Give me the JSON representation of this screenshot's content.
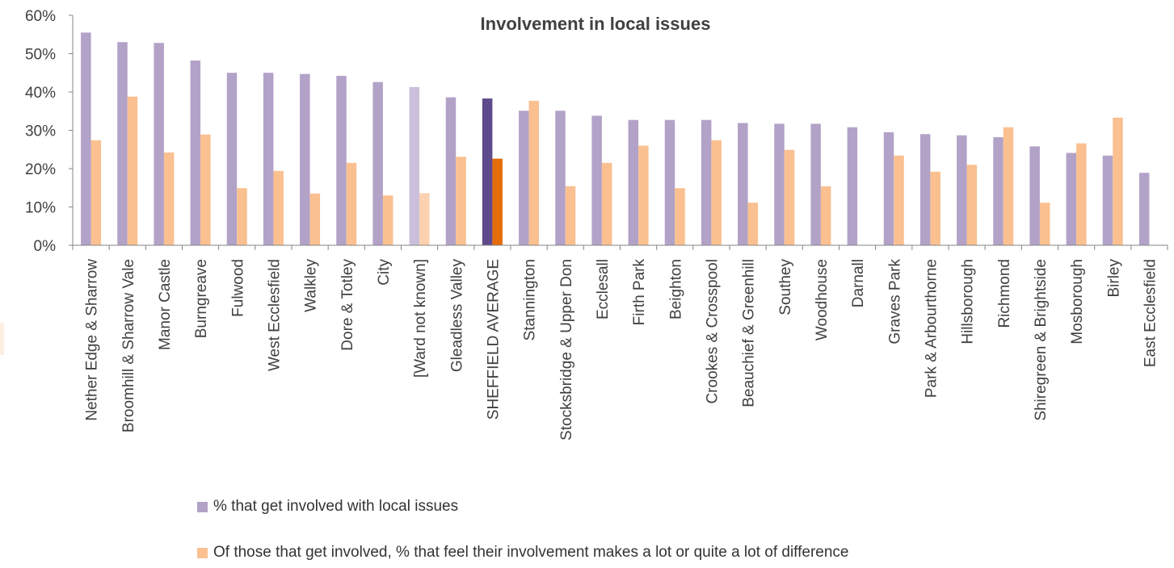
{
  "chart_data": {
    "type": "bar",
    "title": "Involvement in local issues",
    "xlabel": "",
    "ylabel": "",
    "ylim": [
      0,
      60
    ],
    "ytick_values": [
      0,
      10,
      20,
      30,
      40,
      50,
      60
    ],
    "ytick_labels": [
      "0%",
      "10%",
      "20%",
      "30%",
      "40%",
      "50%",
      "60%"
    ],
    "grid": false,
    "legend_position": "bottom",
    "categories": [
      "Nether Edge & Sharrow",
      "Broomhill & Sharrow Vale",
      "Manor Castle",
      "Burngreave",
      "Fulwood",
      "West Ecclesfield",
      "Walkley",
      "Dore & Totley",
      "City",
      "[Ward not known]",
      "Gleadless Valley",
      "SHEFFIELD AVERAGE",
      "Stannington",
      "Stocksbridge & Upper Don",
      "Ecclesall",
      "Firth Park",
      "Beighton",
      "Crookes & Crosspool",
      "Beauchief & Greenhill",
      "Southey",
      "Woodhouse",
      "Darnall",
      "Graves Park",
      "Park & Arbourthorne",
      "Hillsborough",
      "Richmond",
      "Shiregreen & Brightside",
      "Mosborough",
      "Birley",
      "East Ecclesfield"
    ],
    "series": [
      {
        "name": "% that get involved with local issues",
        "color": "#b3a2c7",
        "values": [
          55.5,
          53,
          52.8,
          48.2,
          45,
          45,
          44.7,
          44.2,
          42.6,
          41.3,
          38.6,
          38.3,
          35.1,
          35.1,
          33.8,
          32.7,
          32.7,
          32.7,
          31.9,
          31.7,
          31.7,
          30.8,
          29.5,
          29,
          28.7,
          28.2,
          25.8,
          24.1,
          23.4,
          18.9
        ]
      },
      {
        "name": "Of those that get involved, % that feel their involvement makes a lot or quite a lot of difference",
        "color": "#fac090",
        "values": [
          27.4,
          38.8,
          24.2,
          28.9,
          14.9,
          19.4,
          13.5,
          21.5,
          13,
          13.6,
          23.1,
          22.6,
          37.7,
          15.4,
          21.5,
          26,
          14.9,
          27.4,
          11.1,
          24.9,
          15.4,
          0,
          23.4,
          19.2,
          21,
          30.8,
          11.1,
          26.6,
          33.3,
          0
        ]
      }
    ],
    "highlight": {
      "ward_not_known_colors": [
        "#cbbfdb",
        "#fbd1b0"
      ],
      "average_colors": [
        "#5f4a8b",
        "#e46c0a"
      ]
    }
  }
}
